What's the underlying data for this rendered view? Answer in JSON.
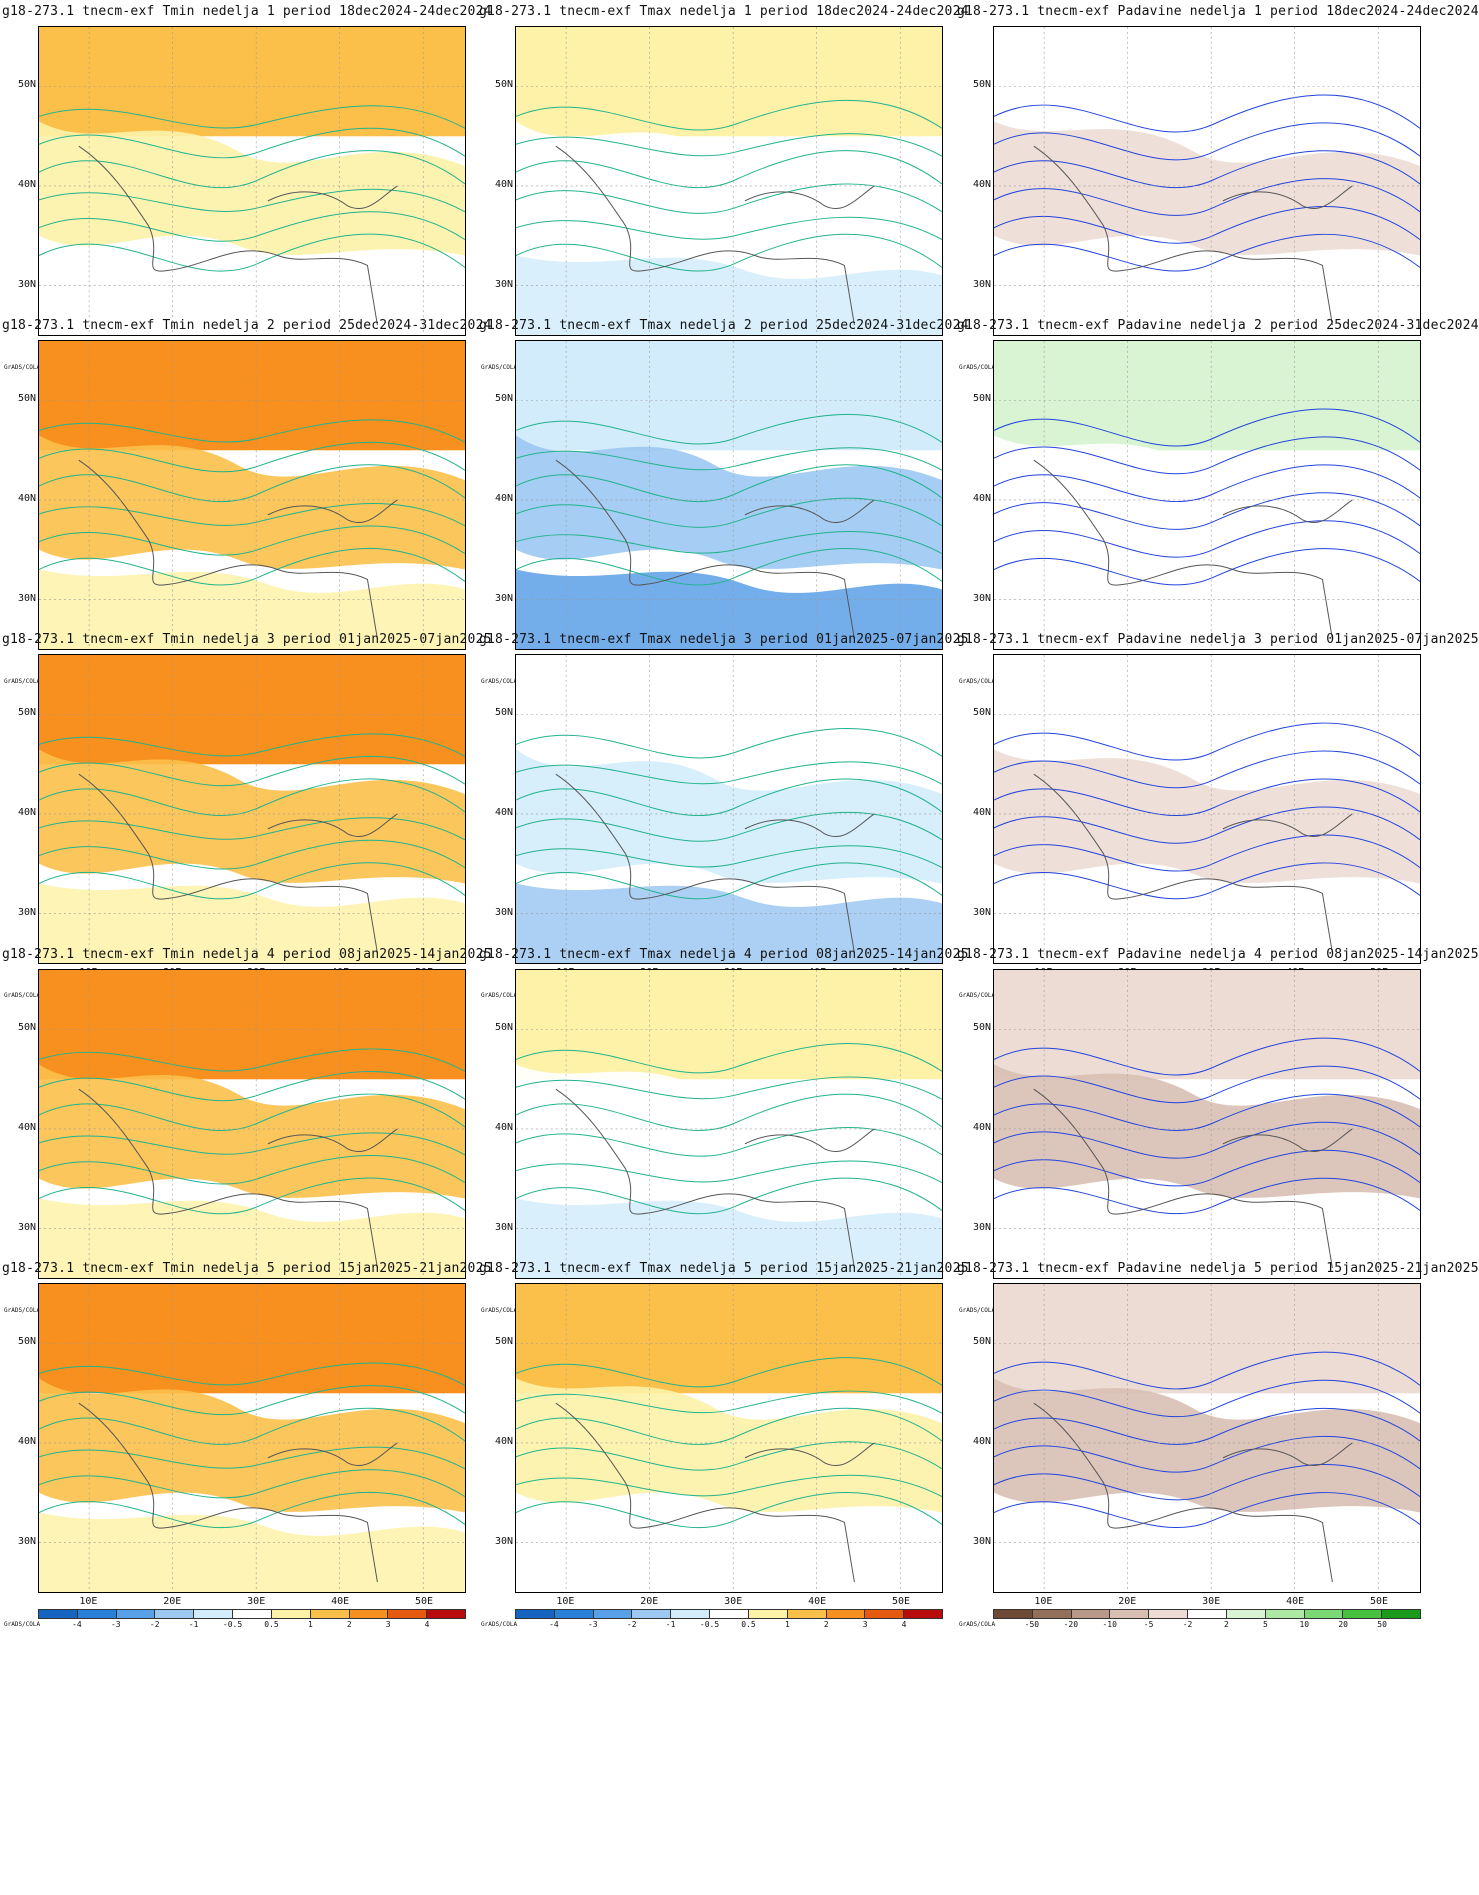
{
  "credit": "GrADS/COLA",
  "lat_labels": [
    "50N",
    "40N",
    "30N"
  ],
  "lon_labels": [
    "10E",
    "20E",
    "30E",
    "40E",
    "50E"
  ],
  "scales": {
    "temp": {
      "labels": [
        "-4",
        "-3",
        "-2",
        "-1",
        "-0.5",
        "0.5",
        "1",
        "2",
        "3",
        "4"
      ],
      "colors": [
        "#1565c0",
        "#2a7fd6",
        "#5aa0e8",
        "#9cc8f2",
        "#d3ecfb",
        "#ffffff",
        "#fdf2a8",
        "#fbc04a",
        "#f7901e",
        "#e65a10",
        "#b80c0c"
      ]
    },
    "precip": {
      "labels": [
        "-50",
        "-20",
        "-10",
        "-5",
        "-2",
        "2",
        "5",
        "10",
        "20",
        "50"
      ],
      "colors": [
        "#6e4a36",
        "#94705a",
        "#b9988a",
        "#d8bfb4",
        "#ecdcd4",
        "#ffffff",
        "#d8f4d2",
        "#aee9a4",
        "#7cd874",
        "#46c03e",
        "#1a9a1a"
      ]
    }
  },
  "panels": [
    {
      "title": "g18-273.1 tnecm-exf Tmin nedelja 1 period 18dec2024-24dec2024",
      "scale": "temp",
      "base": 7
    },
    {
      "title": "g18-273.1 tnecm-exf Tmax nedelja 1 period 18dec2024-24dec2024",
      "scale": "temp",
      "base": 6
    },
    {
      "title": "g18-273.1 tnecm-exf Padavine nedelja 1 period 18dec2024-24dec2024",
      "scale": "precip",
      "base": 5
    },
    {
      "title": "g18-273.1 tnecm-exf Tmin nedelja 2 period 25dec2024-31dec2024",
      "scale": "temp",
      "base": 8
    },
    {
      "title": "g18-273.1 tnecm-exf Tmax nedelja 2 period 25dec2024-31dec2024",
      "scale": "temp",
      "base": 4
    },
    {
      "title": "g18-273.1 tnecm-exf Padavine nedelja 2 period 25dec2024-31dec2024",
      "scale": "precip",
      "base": 6
    },
    {
      "title": "g18-273.1 tnecm-exf Tmin nedelja 3 period 01jan2025-07jan2025",
      "scale": "temp",
      "base": 8
    },
    {
      "title": "g18-273.1 tnecm-exf Tmax nedelja 3 period 01jan2025-07jan2025",
      "scale": "temp",
      "base": 5
    },
    {
      "title": "g18-273.1 tnecm-exf Padavine nedelja 3 period 01jan2025-07jan2025",
      "scale": "precip",
      "base": 5
    },
    {
      "title": "g18-273.1 tnecm-exf Tmin nedelja 4 period 08jan2025-14jan2025",
      "scale": "temp",
      "base": 8
    },
    {
      "title": "g18-273.1 tnecm-exf Tmax nedelja 4 period 08jan2025-14jan2025",
      "scale": "temp",
      "base": 6
    },
    {
      "title": "g18-273.1 tnecm-exf Padavine nedelja 4 period 08jan2025-14jan2025",
      "scale": "precip",
      "base": 4
    },
    {
      "title": "g18-273.1 tnecm-exf Tmin nedelja 5 period 15jan2025-21jan2025",
      "scale": "temp",
      "base": 8
    },
    {
      "title": "g18-273.1 tnecm-exf Tmax nedelja 5 period 15jan2025-21jan2025",
      "scale": "temp",
      "base": 7
    },
    {
      "title": "g18-273.1 tnecm-exf Padavine nedelja 5 period 15jan2025-21jan2025",
      "scale": "precip",
      "base": 4
    }
  ]
}
